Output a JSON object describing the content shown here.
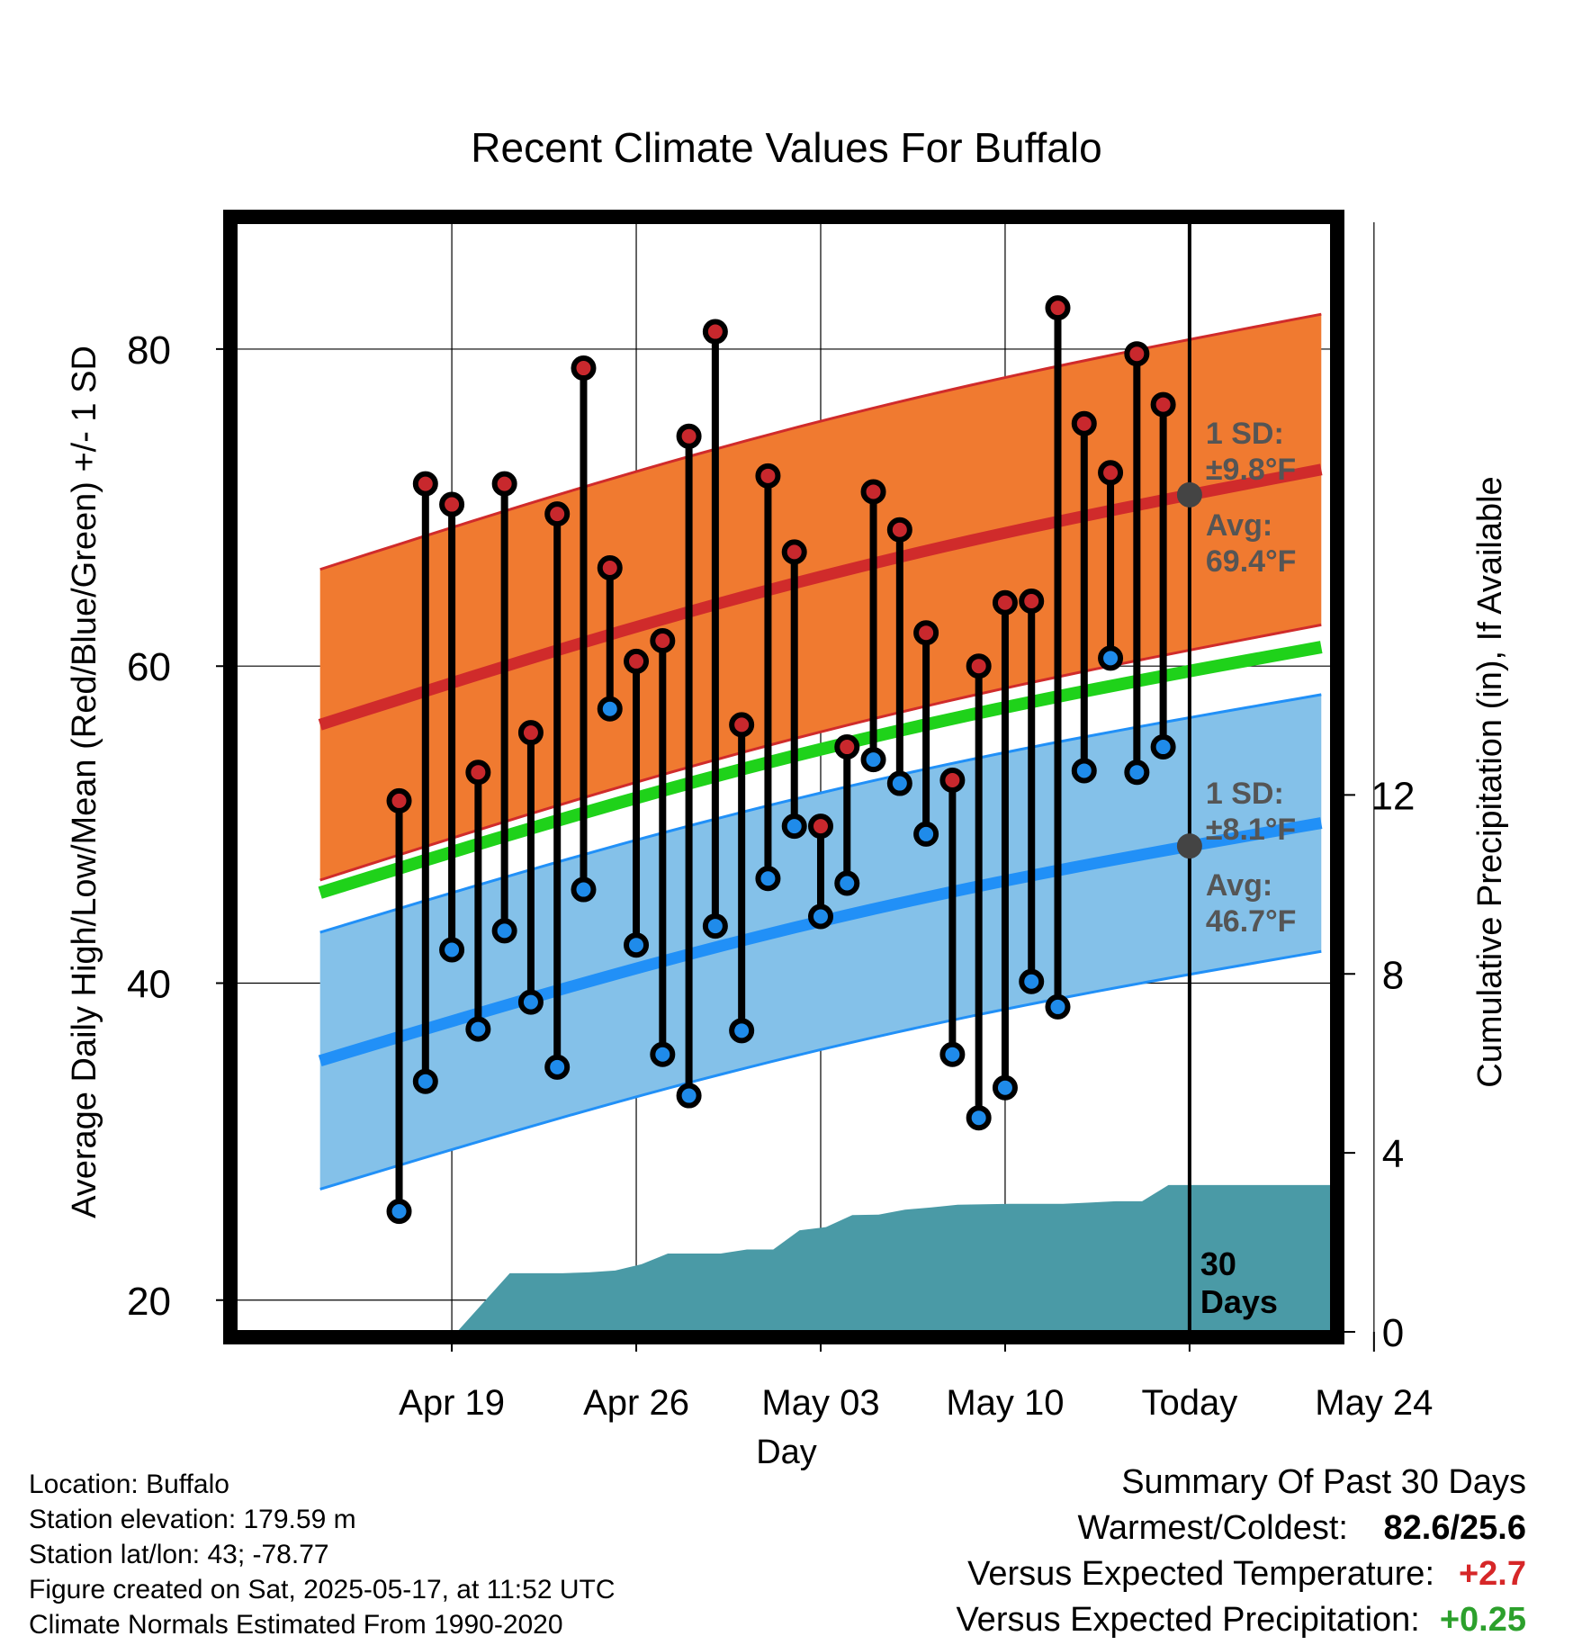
{
  "chart_data": {
    "type": "line",
    "title": "Recent Climate Values For Buffalo",
    "xlabel": "Day",
    "ylabel": "Average Daily High/Low/Mean (Red/Blue/Green) +/- 1 SD",
    "y2label": "Cumulative Precipitation (in), If Available",
    "ylim": [
      18,
      88
    ],
    "y2lim": [
      0,
      24.8
    ],
    "xlim": [
      -5.2,
      36.4
    ],
    "x_ticks": [
      {
        "x": 3,
        "label": "Apr 19"
      },
      {
        "x": 10,
        "label": "Apr 26"
      },
      {
        "x": 17,
        "label": "May 03"
      },
      {
        "x": 24,
        "label": "May 10"
      },
      {
        "x": 31,
        "label": "Today"
      },
      {
        "x": 38,
        "label": "May 24"
      }
    ],
    "y_ticks": [
      20,
      40,
      60,
      80
    ],
    "y2_ticks": [
      0,
      4,
      8,
      12
    ],
    "today_x": 31,
    "today_label": "30\nDays",
    "x_day0": "Apr 16",
    "daily_obs": [
      {
        "x": 1,
        "high": 51.5,
        "low": 25.6
      },
      {
        "x": 2,
        "high": 71.5,
        "low": 33.8
      },
      {
        "x": 3,
        "high": 70.2,
        "low": 42.1
      },
      {
        "x": 4,
        "high": 53.3,
        "low": 37.1
      },
      {
        "x": 5,
        "high": 71.5,
        "low": 43.3
      },
      {
        "x": 6,
        "high": 55.8,
        "low": 38.8
      },
      {
        "x": 7,
        "high": 69.6,
        "low": 34.7
      },
      {
        "x": 8,
        "high": 78.8,
        "low": 45.9
      },
      {
        "x": 9,
        "high": 66.2,
        "low": 57.3
      },
      {
        "x": 10,
        "high": 60.3,
        "low": 42.4
      },
      {
        "x": 11,
        "high": 61.6,
        "low": 35.5
      },
      {
        "x": 12,
        "high": 74.5,
        "low": 32.9
      },
      {
        "x": 13,
        "high": 81.1,
        "low": 43.6
      },
      {
        "x": 14,
        "high": 56.3,
        "low": 37.0
      },
      {
        "x": 15,
        "high": 72.0,
        "low": 46.6
      },
      {
        "x": 16,
        "high": 67.2,
        "low": 49.9
      },
      {
        "x": 17,
        "high": 49.9,
        "low": 44.2
      },
      {
        "x": 18,
        "high": 54.9,
        "low": 46.3
      },
      {
        "x": 19,
        "high": 71.0,
        "low": 54.1
      },
      {
        "x": 20,
        "high": 68.6,
        "low": 52.6
      },
      {
        "x": 21,
        "high": 62.1,
        "low": 49.4
      },
      {
        "x": 22,
        "high": 52.8,
        "low": 35.5
      },
      {
        "x": 23,
        "high": 60.0,
        "low": 31.5
      },
      {
        "x": 24,
        "high": 64.0,
        "low": 33.4
      },
      {
        "x": 25,
        "high": 64.1,
        "low": 40.1
      },
      {
        "x": 26,
        "high": 82.6,
        "low": 38.5
      },
      {
        "x": 27,
        "high": 75.3,
        "low": 53.4
      },
      {
        "x": 28,
        "high": 72.2,
        "low": 60.5
      },
      {
        "x": 29,
        "high": 79.7,
        "low": 53.3
      },
      {
        "x": 30,
        "high": 76.5,
        "low": 54.9
      }
    ],
    "normal_high": {
      "x": [
        -2,
        36
      ],
      "avg": [
        56.3,
        72.4
      ],
      "sd": 9.8
    },
    "normal_low": {
      "x": [
        -2,
        36
      ],
      "avg": [
        35.1,
        50.1
      ],
      "sd": 8.1
    },
    "normal_mean": {
      "x": [
        -2,
        36
      ],
      "values": [
        45.7,
        61.2
      ]
    },
    "precip_cumulative": {
      "x": [
        3.2,
        5.2,
        6.2,
        7.2,
        8.2,
        9.2,
        10.2,
        11.2,
        12.2,
        13.2,
        14.2,
        15.2,
        16.2,
        17.2,
        18.2,
        19.2,
        20.2,
        21.2,
        22.2,
        23.2,
        24.2,
        25.2,
        26.2,
        27.2,
        28.2,
        29.2,
        30.2,
        36.4
      ],
      "values": [
        0,
        1.31,
        1.31,
        1.31,
        1.33,
        1.37,
        1.51,
        1.75,
        1.75,
        1.75,
        1.84,
        1.84,
        2.27,
        2.34,
        2.61,
        2.62,
        2.73,
        2.78,
        2.84,
        2.85,
        2.86,
        2.86,
        2.86,
        2.89,
        2.92,
        2.92,
        3.28,
        3.28
      ]
    },
    "annotations": {
      "high_sd": "1 SD:\n±9.8°F",
      "high_avg": "Avg:\n69.4°F",
      "low_sd": "1 SD:\n±8.1°F",
      "low_avg": "Avg:\n46.7°F"
    },
    "colors": {
      "high_dot": "#c8282d",
      "low_dot": "#1f8bea",
      "high_band": "#f07a30",
      "high_line": "#d02b2b",
      "low_band": "#84c1e9",
      "low_line": "#2190f7",
      "mean_line": "#1fd21a",
      "precip": "#4a9aa6",
      "annotation": "#555555",
      "annotation_dot": "#444444"
    }
  },
  "info": {
    "location": "Location: Buffalo",
    "elevation": "Station elevation: 179.59 m",
    "latlon": "Station lat/lon: 43; -78.77",
    "created": "Figure created on Sat, 2025-05-17, at 11:52 UTC",
    "normals": "Climate Normals Estimated From 1990-2020"
  },
  "summary": {
    "heading": "Summary Of Past 30 Days",
    "warm_cold_label": "Warmest/Coldest:",
    "warm_cold_value": "82.6/25.6",
    "temp_label": "Versus Expected Temperature:",
    "temp_value": "+2.7",
    "precip_label": "Versus Expected Precipitation:",
    "precip_value": "+0.25"
  }
}
